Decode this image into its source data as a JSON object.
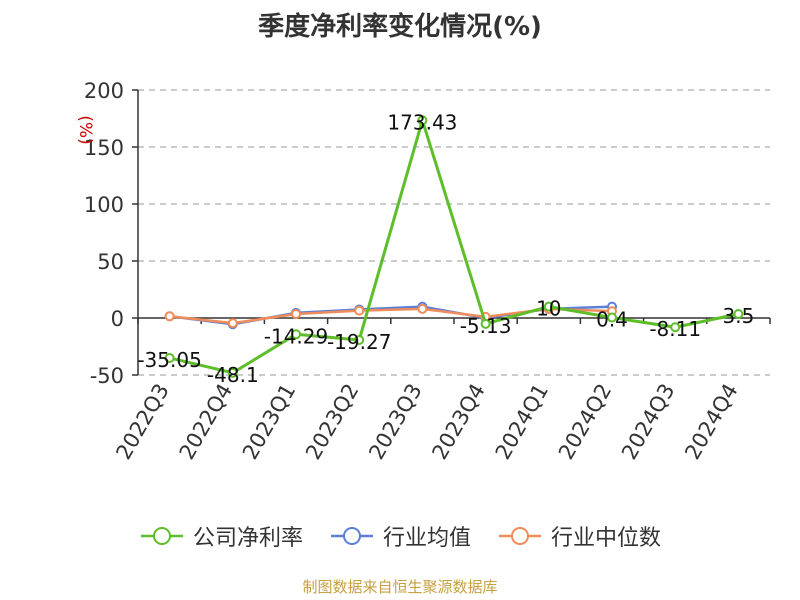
{
  "chart_data": {
    "type": "line",
    "title": "季度净利率变化情况(%)",
    "ylabel": "(%)",
    "categories": [
      "2022Q3",
      "2022Q4",
      "2023Q1",
      "2023Q2",
      "2023Q3",
      "2023Q4",
      "2024Q1",
      "2024Q2",
      "2024Q3",
      "2024Q4"
    ],
    "ylim": [
      -50,
      200
    ],
    "yticks": [
      -50,
      0,
      50,
      100,
      150,
      200
    ],
    "ytick_labels": [
      "-50",
      "0",
      "50",
      "100",
      "150",
      "200"
    ],
    "grid": true,
    "legend": "bottom",
    "series": [
      {
        "name": "公司净利率",
        "color": "#5dbe2a",
        "values": [
          -35.05,
          -48.1,
          -14.29,
          -19.27,
          173.43,
          -5.13,
          10,
          0.4,
          -8.11,
          3.5
        ],
        "labels": [
          "-35.05",
          "-48.1",
          "-14.29",
          "-19.27",
          "173.43",
          "-5.13",
          "10",
          "0.4",
          "-8.11",
          "3.5"
        ]
      },
      {
        "name": "行业均值",
        "color": "#5b7fd6",
        "values": [
          1.5,
          -5.5,
          4.5,
          7.5,
          10,
          0,
          8,
          10,
          null,
          null
        ]
      },
      {
        "name": "行业中位数",
        "color": "#f08c5a",
        "values": [
          1.5,
          -4.5,
          3.5,
          6.5,
          8,
          1,
          8,
          6,
          null,
          null
        ]
      }
    ]
  },
  "footer": "制图数据来自恒生聚源数据库"
}
